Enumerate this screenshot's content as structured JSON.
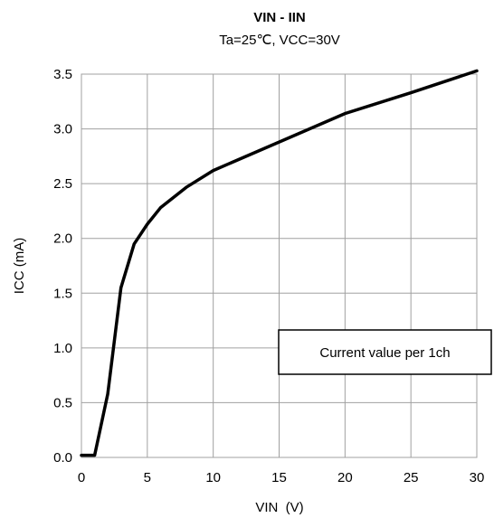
{
  "chart_data": {
    "type": "line",
    "title": "VIN  - IIN",
    "subtitle": "Ta=25℃, VCC=30V",
    "xlabel": "VIN  (V)",
    "ylabel": "ICC (mA)",
    "xlim": [
      0,
      30
    ],
    "ylim": [
      0,
      3.5
    ],
    "x_ticks": [
      "0",
      "5",
      "10",
      "15",
      "20",
      "25",
      "30"
    ],
    "y_ticks": [
      "0.0",
      "0.5",
      "1.0",
      "1.5",
      "2.0",
      "2.5",
      "3.0",
      "3.5"
    ],
    "grid": true,
    "annotation": "Current value per 1ch",
    "series": [
      {
        "x": [
          0,
          1,
          2,
          3,
          4,
          5,
          6,
          8,
          10,
          15,
          20,
          25,
          30
        ],
        "y": [
          0.02,
          0.02,
          0.58,
          1.55,
          1.95,
          2.13,
          2.28,
          2.47,
          2.62,
          2.88,
          3.14,
          3.33,
          3.53
        ]
      }
    ],
    "line_color": "#000000",
    "grid_color": "#a0a0a0"
  }
}
